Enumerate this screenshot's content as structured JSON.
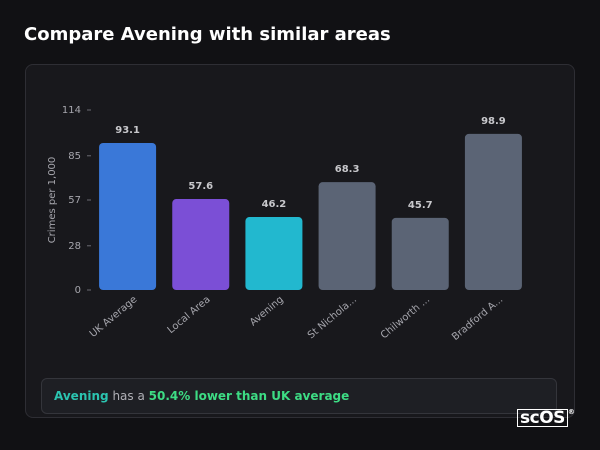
{
  "header": {
    "title": "Compare Avening with similar areas"
  },
  "chart_data": {
    "type": "bar",
    "y_label": "Crimes per 1,000",
    "categories": [
      "UK Average",
      "Local Area",
      "Avening",
      "St Nichola...",
      "Chilworth ...",
      "Bradford A..."
    ],
    "values": [
      93.1,
      57.6,
      46.2,
      68.3,
      45.7,
      98.9
    ],
    "colors": [
      "#3a78d8",
      "#7b4fd6",
      "#22b8cf",
      "#5b6475",
      "#5b6475",
      "#5b6475"
    ],
    "ylim": [
      0,
      114
    ],
    "yticks": [
      0,
      28,
      57,
      85,
      114
    ],
    "grid": false
  },
  "insight": {
    "area": "Avening",
    "text": "has a",
    "highlight": "50.4% lower than UK average"
  },
  "logo": {
    "text": "scOS",
    "mark": "®"
  }
}
